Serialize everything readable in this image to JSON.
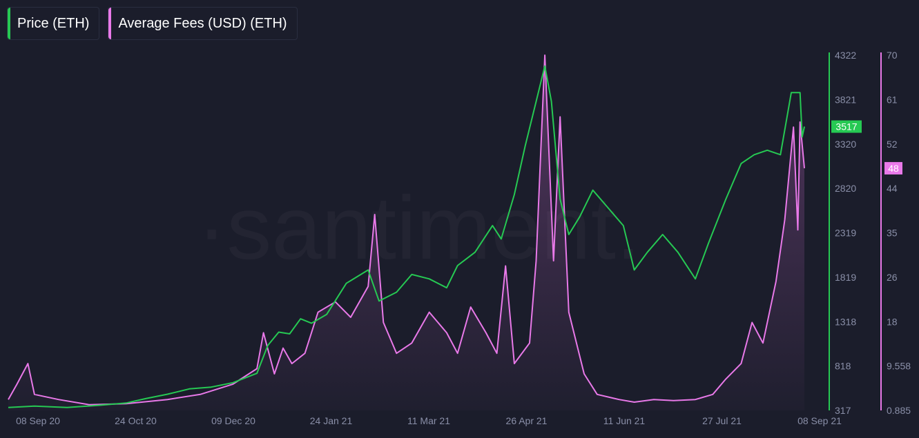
{
  "legend": {
    "price_label": "Price (ETH)",
    "fees_label": "Average Fees (USD) (ETH)"
  },
  "watermark": "·santiment.",
  "colors": {
    "price": "#26c953",
    "fees": "#e979e9",
    "background": "#1b1d2b",
    "tick_text": "#8a8fa8"
  },
  "chart_data": {
    "type": "line",
    "x_ticks": [
      "08 Sep 20",
      "24 Oct 20",
      "09 Dec 20",
      "24 Jan 21",
      "11 Mar 21",
      "26 Apr 21",
      "11 Jun 21",
      "27 Jul 21",
      "08 Sep 21"
    ],
    "x_range": [
      "2020-09-08",
      "2021-09-08"
    ],
    "price_axis": {
      "ticks": [
        "4322",
        "3821",
        "3320",
        "2820",
        "2319",
        "1819",
        "1318",
        "818",
        "317"
      ],
      "ylim": [
        317,
        4322
      ],
      "current_label": "3517"
    },
    "fees_axis": {
      "ticks": [
        "70",
        "61",
        "52",
        "44",
        "35",
        "26",
        "18",
        "9.558",
        "0.885"
      ],
      "ylim": [
        0.885,
        70
      ],
      "current_label": "48"
    },
    "series": [
      {
        "name": "Price (ETH)",
        "axis": "price",
        "points": [
          [
            "2020-09-08",
            350
          ],
          [
            "2020-09-20",
            365
          ],
          [
            "2020-10-05",
            350
          ],
          [
            "2020-10-20",
            375
          ],
          [
            "2020-11-01",
            400
          ],
          [
            "2020-11-10",
            450
          ],
          [
            "2020-11-20",
            500
          ],
          [
            "2020-11-30",
            560
          ],
          [
            "2020-12-10",
            580
          ],
          [
            "2020-12-20",
            630
          ],
          [
            "2020-12-31",
            735
          ],
          [
            "2021-01-05",
            1050
          ],
          [
            "2021-01-10",
            1200
          ],
          [
            "2021-01-15",
            1180
          ],
          [
            "2021-01-20",
            1350
          ],
          [
            "2021-01-25",
            1300
          ],
          [
            "2021-02-01",
            1400
          ],
          [
            "2021-02-10",
            1750
          ],
          [
            "2021-02-20",
            1900
          ],
          [
            "2021-02-25",
            1550
          ],
          [
            "2021-03-05",
            1650
          ],
          [
            "2021-03-12",
            1850
          ],
          [
            "2021-03-20",
            1800
          ],
          [
            "2021-03-28",
            1700
          ],
          [
            "2021-04-02",
            1950
          ],
          [
            "2021-04-10",
            2100
          ],
          [
            "2021-04-18",
            2400
          ],
          [
            "2021-04-22",
            2250
          ],
          [
            "2021-04-28",
            2750
          ],
          [
            "2021-05-03",
            3300
          ],
          [
            "2021-05-08",
            3800
          ],
          [
            "2021-05-12",
            4200
          ],
          [
            "2021-05-15",
            3800
          ],
          [
            "2021-05-19",
            2700
          ],
          [
            "2021-05-23",
            2300
          ],
          [
            "2021-05-28",
            2500
          ],
          [
            "2021-06-03",
            2800
          ],
          [
            "2021-06-10",
            2600
          ],
          [
            "2021-06-17",
            2400
          ],
          [
            "2021-06-22",
            1900
          ],
          [
            "2021-06-28",
            2100
          ],
          [
            "2021-07-05",
            2300
          ],
          [
            "2021-07-12",
            2100
          ],
          [
            "2021-07-20",
            1800
          ],
          [
            "2021-07-26",
            2200
          ],
          [
            "2021-08-03",
            2700
          ],
          [
            "2021-08-10",
            3100
          ],
          [
            "2021-08-16",
            3200
          ],
          [
            "2021-08-22",
            3250
          ],
          [
            "2021-08-28",
            3200
          ],
          [
            "2021-09-02",
            3900
          ],
          [
            "2021-09-06",
            3900
          ],
          [
            "2021-09-07",
            3400
          ],
          [
            "2021-09-08",
            3517
          ]
        ]
      },
      {
        "name": "Average Fees (USD) (ETH)",
        "axis": "fees",
        "points": [
          [
            "2020-09-08",
            3
          ],
          [
            "2020-09-12",
            6
          ],
          [
            "2020-09-17",
            10
          ],
          [
            "2020-09-20",
            4
          ],
          [
            "2020-10-01",
            3
          ],
          [
            "2020-10-15",
            2
          ],
          [
            "2020-11-01",
            2.2
          ],
          [
            "2020-11-20",
            3
          ],
          [
            "2020-12-05",
            4
          ],
          [
            "2020-12-20",
            6
          ],
          [
            "2020-12-31",
            9
          ],
          [
            "2021-01-03",
            16
          ],
          [
            "2021-01-08",
            8
          ],
          [
            "2021-01-12",
            13
          ],
          [
            "2021-01-16",
            10
          ],
          [
            "2021-01-22",
            12
          ],
          [
            "2021-01-28",
            20
          ],
          [
            "2021-02-05",
            22
          ],
          [
            "2021-02-12",
            19
          ],
          [
            "2021-02-20",
            25
          ],
          [
            "2021-02-23",
            39
          ],
          [
            "2021-02-27",
            18
          ],
          [
            "2021-03-05",
            12
          ],
          [
            "2021-03-12",
            14
          ],
          [
            "2021-03-20",
            20
          ],
          [
            "2021-03-28",
            16
          ],
          [
            "2021-04-02",
            12
          ],
          [
            "2021-04-08",
            21
          ],
          [
            "2021-04-15",
            16
          ],
          [
            "2021-04-20",
            12
          ],
          [
            "2021-04-24",
            29
          ],
          [
            "2021-04-28",
            10
          ],
          [
            "2021-05-05",
            14
          ],
          [
            "2021-05-08",
            30
          ],
          [
            "2021-05-12",
            70
          ],
          [
            "2021-05-16",
            30
          ],
          [
            "2021-05-19",
            58
          ],
          [
            "2021-05-23",
            20
          ],
          [
            "2021-05-30",
            8
          ],
          [
            "2021-06-05",
            4
          ],
          [
            "2021-06-15",
            3
          ],
          [
            "2021-06-22",
            2.5
          ],
          [
            "2021-07-01",
            3
          ],
          [
            "2021-07-10",
            2.8
          ],
          [
            "2021-07-20",
            3
          ],
          [
            "2021-07-28",
            4
          ],
          [
            "2021-08-03",
            7
          ],
          [
            "2021-08-10",
            10
          ],
          [
            "2021-08-15",
            18
          ],
          [
            "2021-08-20",
            14
          ],
          [
            "2021-08-26",
            26
          ],
          [
            "2021-08-30",
            38
          ],
          [
            "2021-09-03",
            56
          ],
          [
            "2021-09-05",
            36
          ],
          [
            "2021-09-06",
            57
          ],
          [
            "2021-09-08",
            48
          ]
        ]
      }
    ],
    "grid": false,
    "legend_position": "top-left"
  }
}
